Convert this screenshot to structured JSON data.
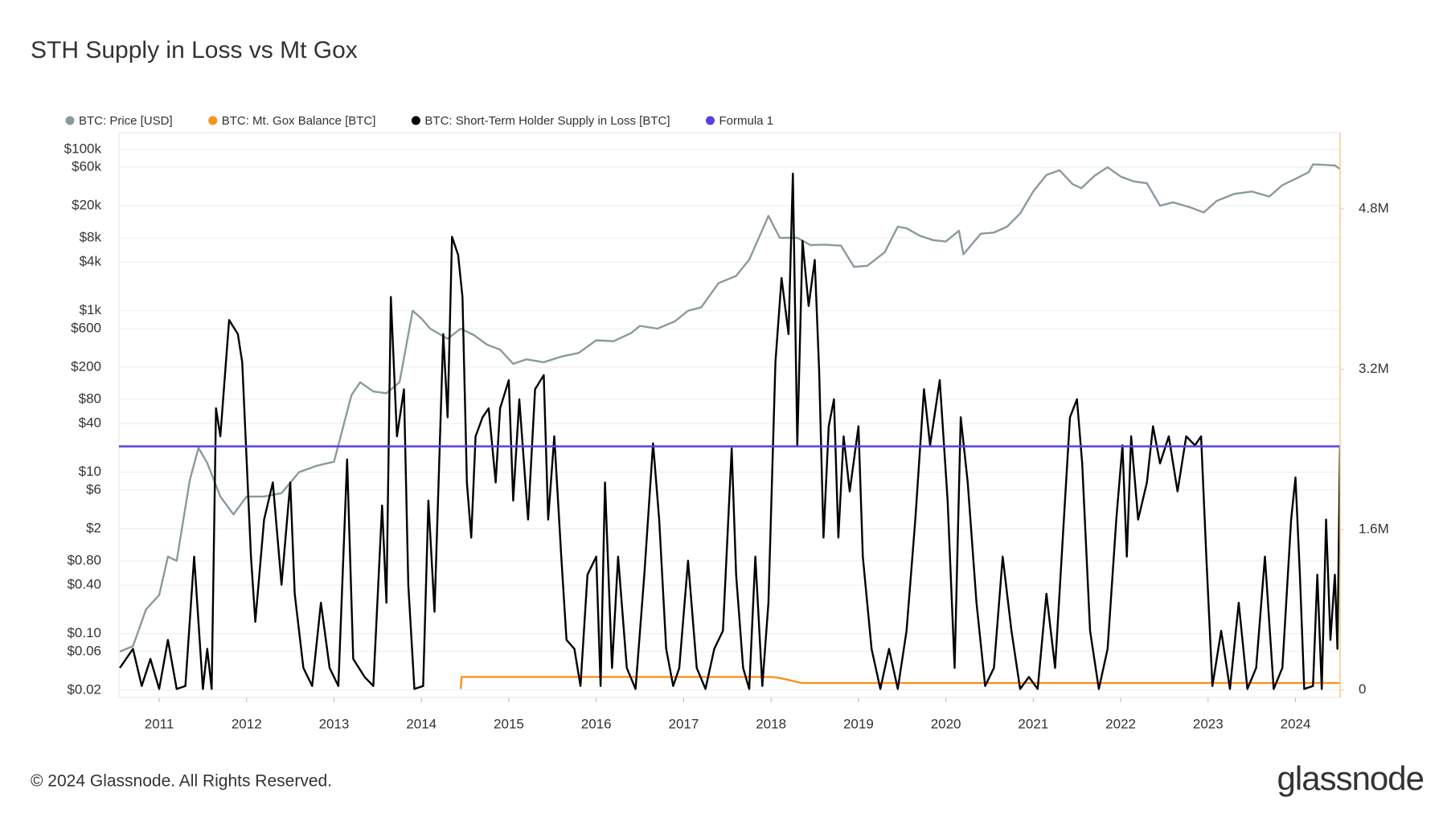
{
  "chart_data": {
    "type": "line",
    "title": "STH Supply in Loss vs Mt Gox",
    "footer": "© 2024 Glassnode. All Rights Reserved.",
    "brand": "glassnode",
    "yscale": "log",
    "grid": true,
    "legend": "top-left",
    "xlim": [
      2010.54,
      2024.51
    ],
    "xticks": [
      2011,
      2012,
      2013,
      2014,
      2015,
      2016,
      2017,
      2018,
      2019,
      2020,
      2021,
      2022,
      2023,
      2024
    ],
    "ylim": [
      0.0162,
      161000
    ],
    "yticks": [
      {
        "value": 0.02,
        "label": "$0.02"
      },
      {
        "value": 0.06,
        "label": "$0.06"
      },
      {
        "value": 0.1,
        "label": "$0.10"
      },
      {
        "value": 0.4,
        "label": "$0.40"
      },
      {
        "value": 0.8,
        "label": "$0.80"
      },
      {
        "value": 2,
        "label": "$2"
      },
      {
        "value": 6,
        "label": "$6"
      },
      {
        "value": 10,
        "label": "$10"
      },
      {
        "value": 40,
        "label": "$40"
      },
      {
        "value": 80,
        "label": "$80"
      },
      {
        "value": 200,
        "label": "$200"
      },
      {
        "value": 600,
        "label": "$600"
      },
      {
        "value": 1000,
        "label": "$1k"
      },
      {
        "value": 4000,
        "label": "$4k"
      },
      {
        "value": 8000,
        "label": "$8k"
      },
      {
        "value": 20000,
        "label": "$20k"
      },
      {
        "value": 60000,
        "label": "$60k"
      },
      {
        "value": 100000,
        "label": "$100k"
      }
    ],
    "y2lim": [
      -75000,
      5560000
    ],
    "y2ticks": [
      0,
      {
        "value": 1600000,
        "label": "1.6M"
      },
      {
        "value": 3200000,
        "label": "3.2M"
      },
      {
        "value": 4800000,
        "label": "4.8M"
      }
    ],
    "series": [
      {
        "name": "BTC: Price [USD]",
        "color": "#8a9a9e",
        "axis": "y",
        "x": [
          2010.55,
          2010.7,
          2010.85,
          2011.0,
          2011.1,
          2011.2,
          2011.35,
          2011.45,
          2011.55,
          2011.7,
          2011.85,
          2012.0,
          2012.2,
          2012.4,
          2012.6,
          2012.8,
          2013.0,
          2013.2,
          2013.3,
          2013.45,
          2013.6,
          2013.75,
          2013.9,
          2014.0,
          2014.1,
          2014.3,
          2014.45,
          2014.6,
          2014.75,
          2014.9,
          2015.05,
          2015.2,
          2015.4,
          2015.6,
          2015.8,
          2016.0,
          2016.2,
          2016.4,
          2016.5,
          2016.7,
          2016.9,
          2017.05,
          2017.2,
          2017.4,
          2017.6,
          2017.75,
          2017.9,
          2017.97,
          2018.1,
          2018.3,
          2018.45,
          2018.6,
          2018.8,
          2018.95,
          2019.1,
          2019.3,
          2019.45,
          2019.55,
          2019.7,
          2019.85,
          2020.0,
          2020.15,
          2020.2,
          2020.4,
          2020.55,
          2020.7,
          2020.85,
          2021.0,
          2021.15,
          2021.3,
          2021.45,
          2021.55,
          2021.7,
          2021.85,
          2022.0,
          2022.15,
          2022.3,
          2022.45,
          2022.6,
          2022.8,
          2022.95,
          2023.1,
          2023.3,
          2023.5,
          2023.7,
          2023.85,
          2024.0,
          2024.15,
          2024.2,
          2024.35,
          2024.45,
          2024.51
        ],
        "values": [
          0.06,
          0.07,
          0.2,
          0.3,
          0.9,
          0.8,
          8,
          20,
          13,
          5,
          3,
          5,
          5,
          5.5,
          10,
          12,
          13.5,
          90,
          130,
          100,
          95,
          130,
          1000,
          800,
          600,
          450,
          600,
          500,
          380,
          330,
          220,
          250,
          230,
          270,
          300,
          430,
          420,
          530,
          650,
          600,
          740,
          1000,
          1100,
          2200,
          2700,
          4300,
          10000,
          15000,
          8000,
          8000,
          6500,
          6600,
          6400,
          3500,
          3600,
          5300,
          11000,
          10500,
          8500,
          7500,
          7200,
          9800,
          5000,
          9000,
          9300,
          11000,
          16000,
          30000,
          48000,
          55000,
          37000,
          33000,
          47000,
          60000,
          46000,
          40000,
          38000,
          20000,
          22000,
          19000,
          16500,
          23000,
          28000,
          30000,
          26000,
          36000,
          43000,
          52000,
          65000,
          64000,
          63000,
          57000
        ]
      },
      {
        "name": "BTC: Mt. Gox Balance [BTC]",
        "color": "#f7931a",
        "axis": "y2",
        "x": [
          2014.45,
          2014.46,
          2018.0,
          2018.1,
          2018.2,
          2018.35,
          2024.45,
          2024.51
        ],
        "values": [
          10000,
          130000,
          130000,
          120000,
          100000,
          70000,
          70000,
          70000
        ]
      },
      {
        "name": "BTC: Short-Term Holder Supply in Loss [BTC]",
        "color": "#000000",
        "axis": "y2",
        "x": [
          2010.55,
          2010.7,
          2010.8,
          2010.9,
          2011.0,
          2011.1,
          2011.2,
          2011.3,
          2011.4,
          2011.5,
          2011.55,
          2011.6,
          2011.65,
          2011.7,
          2011.8,
          2011.9,
          2011.95,
          2012.05,
          2012.1,
          2012.2,
          2012.3,
          2012.4,
          2012.5,
          2012.55,
          2012.65,
          2012.75,
          2012.85,
          2012.95,
          2013.05,
          2013.15,
          2013.22,
          2013.35,
          2013.45,
          2013.55,
          2013.6,
          2013.65,
          2013.72,
          2013.8,
          2013.85,
          2013.92,
          2014.02,
          2014.08,
          2014.15,
          2014.25,
          2014.3,
          2014.35,
          2014.42,
          2014.47,
          2014.52,
          2014.57,
          2014.62,
          2014.7,
          2014.77,
          2014.85,
          2014.9,
          2015.0,
          2015.05,
          2015.12,
          2015.22,
          2015.3,
          2015.4,
          2015.45,
          2015.52,
          2015.6,
          2015.66,
          2015.75,
          2015.82,
          2015.9,
          2016.0,
          2016.05,
          2016.1,
          2016.18,
          2016.25,
          2016.35,
          2016.45,
          2016.55,
          2016.65,
          2016.72,
          2016.8,
          2016.88,
          2016.95,
          2017.05,
          2017.15,
          2017.25,
          2017.35,
          2017.45,
          2017.55,
          2017.6,
          2017.68,
          2017.75,
          2017.82,
          2017.9,
          2017.97,
          2018.05,
          2018.12,
          2018.2,
          2018.25,
          2018.3,
          2018.36,
          2018.43,
          2018.5,
          2018.55,
          2018.6,
          2018.66,
          2018.72,
          2018.77,
          2018.83,
          2018.9,
          2019.0,
          2019.05,
          2019.15,
          2019.25,
          2019.35,
          2019.45,
          2019.55,
          2019.65,
          2019.75,
          2019.82,
          2019.93,
          2020.02,
          2020.1,
          2020.17,
          2020.25,
          2020.35,
          2020.45,
          2020.55,
          2020.65,
          2020.75,
          2020.85,
          2020.95,
          2021.05,
          2021.15,
          2021.25,
          2021.35,
          2021.42,
          2021.5,
          2021.56,
          2021.65,
          2021.75,
          2021.85,
          2021.95,
          2022.02,
          2022.07,
          2022.12,
          2022.2,
          2022.3,
          2022.37,
          2022.45,
          2022.55,
          2022.65,
          2022.75,
          2022.85,
          2022.92,
          2022.98,
          2023.05,
          2023.15,
          2023.25,
          2023.35,
          2023.45,
          2023.55,
          2023.65,
          2023.75,
          2023.85,
          2023.95,
          2024.0,
          2024.05,
          2024.1,
          2024.2,
          2024.25,
          2024.3,
          2024.35,
          2024.4,
          2024.45,
          2024.48,
          2024.51
        ],
        "values": [
          220000,
          410000,
          40000,
          310000,
          10000,
          500000,
          10000,
          40000,
          1330000,
          10000,
          410000,
          10000,
          2810000,
          2530000,
          3690000,
          3550000,
          3270000,
          1330000,
          680000,
          1700000,
          2070000,
          1050000,
          2070000,
          960000,
          220000,
          40000,
          870000,
          220000,
          40000,
          2300000,
          310000,
          130000,
          40000,
          1840000,
          870000,
          3920000,
          2530000,
          3000000,
          1050000,
          10000,
          40000,
          1890000,
          780000,
          3550000,
          2720000,
          4520000,
          4340000,
          3920000,
          2070000,
          1520000,
          2530000,
          2720000,
          2810000,
          2070000,
          2810000,
          3090000,
          1890000,
          2900000,
          1700000,
          3000000,
          3140000,
          1700000,
          2530000,
          1330000,
          500000,
          410000,
          40000,
          1150000,
          1330000,
          40000,
          2070000,
          220000,
          1330000,
          220000,
          10000,
          1150000,
          2460000,
          1700000,
          410000,
          40000,
          220000,
          1290000,
          220000,
          10000,
          410000,
          590000,
          2410000,
          1150000,
          220000,
          10000,
          1330000,
          40000,
          870000,
          3270000,
          4110000,
          3550000,
          5150000,
          2440000,
          4480000,
          3830000,
          4290000,
          3180000,
          1520000,
          2630000,
          2900000,
          1520000,
          2530000,
          1980000,
          2630000,
          1330000,
          410000,
          10000,
          410000,
          10000,
          590000,
          1700000,
          3000000,
          2440000,
          3090000,
          1890000,
          220000,
          2720000,
          2070000,
          870000,
          40000,
          220000,
          1330000,
          590000,
          10000,
          130000,
          10000,
          960000,
          220000,
          1700000,
          2720000,
          2900000,
          2260000,
          590000,
          10000,
          410000,
          1700000,
          2440000,
          1330000,
          2530000,
          1700000,
          2070000,
          2630000,
          2260000,
          2530000,
          1980000,
          2530000,
          2440000,
          2530000,
          1330000,
          40000,
          590000,
          10000,
          870000,
          10000,
          220000,
          1330000,
          10000,
          220000,
          1700000,
          2120000,
          1150000,
          10000,
          40000,
          1150000,
          10000,
          1700000,
          500000,
          1150000,
          410000,
          2440000
        ]
      },
      {
        "name": "Formula 1",
        "color": "#5b3fe0",
        "axis": "y2",
        "x": [
          2010.54,
          2024.51
        ],
        "values": [
          2430000,
          2430000
        ]
      }
    ]
  }
}
